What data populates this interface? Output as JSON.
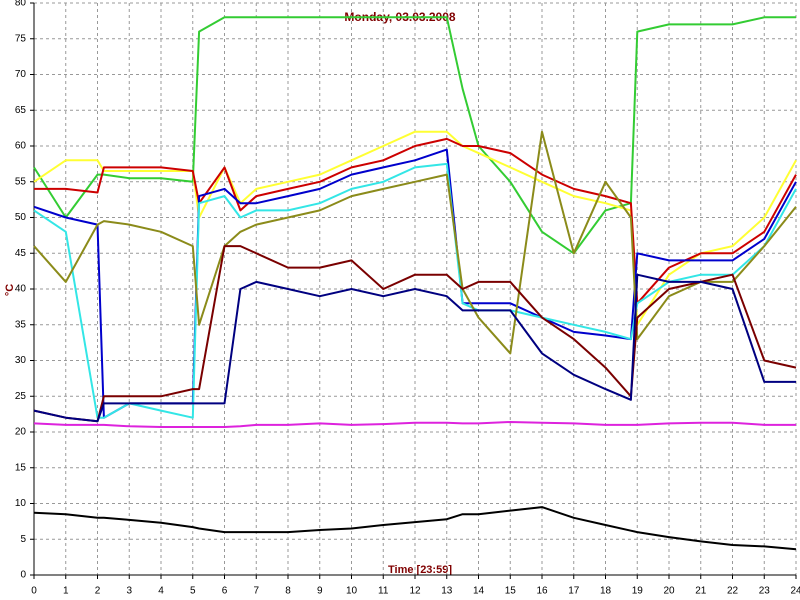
{
  "chart_data": {
    "type": "line",
    "title": "Monday, 03.03.2008",
    "xlabel": "Time [23:59]",
    "ylabel": "°C",
    "xlim": [
      0,
      24
    ],
    "ylim": [
      0,
      80
    ],
    "xticks": [
      0,
      1,
      2,
      3,
      4,
      5,
      6,
      7,
      8,
      9,
      10,
      11,
      12,
      13,
      14,
      15,
      16,
      17,
      18,
      19,
      20,
      21,
      22,
      23,
      24
    ],
    "yticks": [
      0,
      5,
      10,
      15,
      20,
      25,
      30,
      35,
      40,
      45,
      50,
      55,
      60,
      65,
      70,
      75,
      80
    ],
    "grid": true,
    "x": [
      0,
      1,
      2,
      2.2,
      3,
      4,
      5,
      5.2,
      6,
      6.5,
      7,
      8,
      9,
      10,
      11,
      12,
      13,
      13.5,
      14,
      15,
      16,
      17,
      18,
      18.8,
      19,
      20,
      21,
      22,
      23,
      24
    ],
    "series": [
      {
        "color": "#33cc33",
        "values": [
          57,
          50,
          56,
          56,
          55.5,
          55.5,
          55,
          76,
          78,
          78,
          78,
          78,
          78,
          78,
          78,
          78,
          78,
          68,
          60,
          55,
          48,
          45,
          51,
          52,
          76,
          77,
          77,
          77,
          78,
          78
        ]
      },
      {
        "color": "#ffff33",
        "values": [
          55,
          58,
          58,
          56.5,
          56.5,
          56.5,
          56.5,
          50,
          57,
          52,
          54,
          55,
          56,
          58,
          60,
          62,
          62,
          60,
          59,
          57,
          55,
          53,
          52,
          51,
          35,
          42,
          45,
          46,
          50,
          58
        ]
      },
      {
        "color": "#cc0000",
        "values": [
          54,
          54,
          53.5,
          57,
          57,
          57,
          56.5,
          52,
          57,
          51,
          53,
          54,
          55,
          57,
          58,
          60,
          61,
          60,
          60,
          59,
          56,
          54,
          53,
          52,
          38,
          43,
          45,
          45,
          48,
          56
        ]
      },
      {
        "color": "#0000cc",
        "values": [
          51.5,
          50,
          49,
          22,
          24,
          24,
          24,
          53,
          54,
          52,
          52,
          53,
          54,
          56,
          57,
          58,
          59.5,
          38,
          38,
          38,
          36,
          34,
          33.5,
          33,
          45,
          44,
          44,
          44,
          47,
          55
        ]
      },
      {
        "color": "#33e6e6",
        "values": [
          51,
          48,
          22,
          22,
          24,
          23,
          22,
          52,
          53,
          50,
          51,
          51,
          52,
          54,
          55,
          57,
          57.5,
          38,
          37,
          37,
          36,
          35,
          34,
          33,
          38,
          41,
          42,
          42,
          46,
          54
        ]
      },
      {
        "color": "#8b8b1a",
        "values": [
          46,
          41,
          49,
          49.5,
          49,
          48,
          46,
          35,
          46,
          48,
          49,
          50,
          51,
          53,
          54,
          55,
          56,
          40,
          36,
          31,
          62,
          45,
          55,
          50,
          33,
          39,
          41,
          41,
          46,
          51.5
        ]
      },
      {
        "color": "#7a0000",
        "values": [
          23,
          22,
          21.5,
          25,
          25,
          25,
          26,
          26,
          46,
          46,
          45,
          43,
          43,
          44,
          40,
          42,
          42,
          40,
          41,
          41,
          36,
          33,
          29,
          25,
          36,
          40,
          41,
          42,
          30,
          29
        ]
      },
      {
        "color": "#000080",
        "values": [
          23,
          22,
          21.5,
          24,
          24,
          24,
          24,
          24,
          24,
          40,
          41,
          40,
          39,
          40,
          39,
          40,
          39,
          37,
          37,
          37,
          31,
          28,
          26,
          24.5,
          42,
          41,
          41,
          40,
          27,
          27
        ]
      },
      {
        "color": "#dd22dd",
        "values": [
          21.2,
          21,
          21,
          21,
          20.8,
          20.7,
          20.7,
          20.7,
          20.7,
          20.8,
          21,
          21,
          21.2,
          21,
          21.1,
          21.3,
          21.3,
          21.2,
          21.2,
          21.4,
          21.3,
          21.2,
          21,
          21,
          21,
          21.2,
          21.3,
          21.3,
          21,
          21
        ]
      },
      {
        "color": "#000000",
        "values": [
          8.7,
          8.5,
          8,
          8,
          7.7,
          7.3,
          6.7,
          6.5,
          6,
          6,
          6,
          6,
          6.3,
          6.5,
          7,
          7.4,
          7.8,
          8.5,
          8.5,
          9,
          9.5,
          8,
          7,
          6.2,
          6,
          5.3,
          4.7,
          4.2,
          4,
          3.6
        ]
      }
    ]
  }
}
